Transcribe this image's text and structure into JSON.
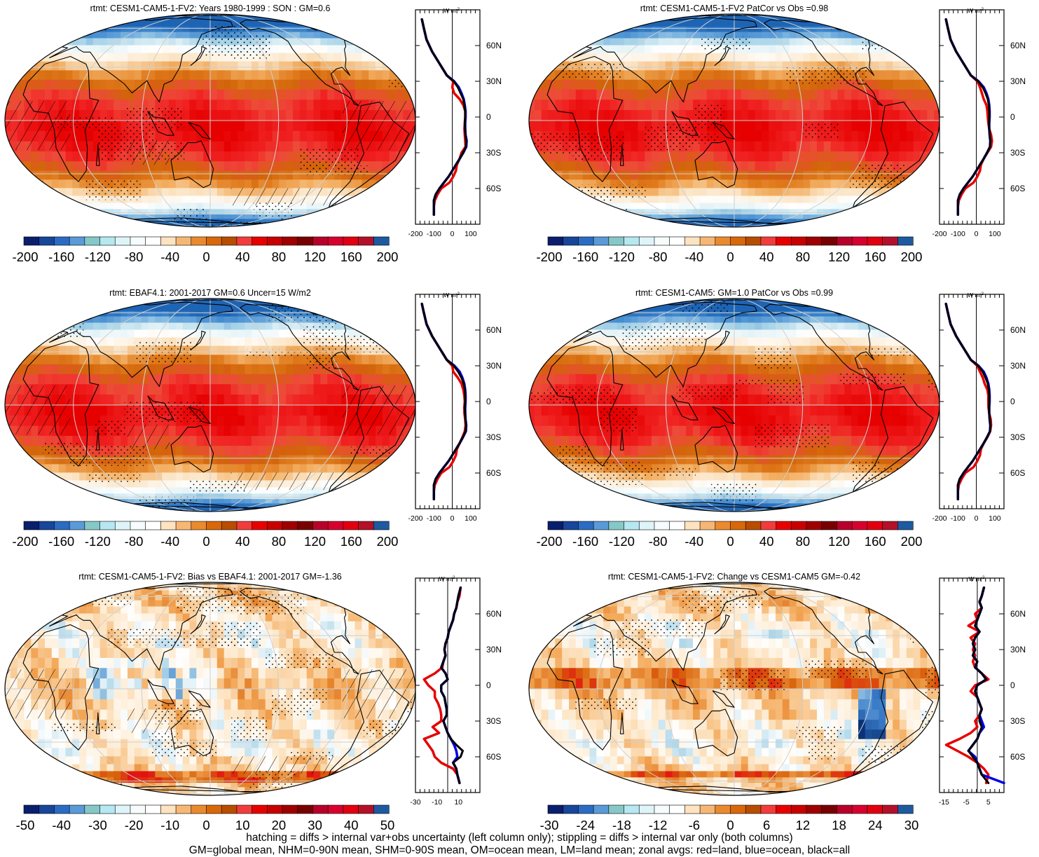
{
  "figure": {
    "footer_lines": [
      "hatching = diffs > internal var+obs uncertainty (left column only); stippling = diffs > internal var only (both columns)",
      "GM=global mean, NHM=0-90N mean, SHM=0-90S mean, OM=ocean mean, LM=land mean; zonal avgs: red=land, blue=ocean, black=all"
    ],
    "zonal_unit_label": "W m",
    "zonal_unit_sup": "-2",
    "lat_labels": [
      "60N",
      "30N",
      "0",
      "30S",
      "60S"
    ],
    "legend_colors": {
      "land": "#e60000",
      "ocean": "#0000e6",
      "all": "#000000"
    }
  },
  "chart_data": [
    {
      "type": "heatmap",
      "title": "rtmt: CESM1-CAM5-1-FV2: Years 1980-1999 : SON : GM=0.6",
      "field": "absolute",
      "hatching": true,
      "colorbar": {
        "labels": [
          "-200",
          "-160",
          "-120",
          "-80",
          "-40",
          "0",
          "40",
          "80",
          "120",
          "160",
          "200"
        ],
        "colors": [
          "#0a1e6e",
          "#17469a",
          "#2a6cc4",
          "#5a9ad8",
          "#86c8c8",
          "#b5e8f0",
          "#dff4f8",
          "#f6fbfc",
          "#ffffff",
          "#fde3c0",
          "#f7b774",
          "#ea8a2e",
          "#d9680a",
          "#b84d00",
          "#f23c3c",
          "#e80000",
          "#c80000",
          "#a00000",
          "#780000",
          "#b8002a",
          "#d8002e",
          "#e20010",
          "#b4102a",
          "#1e5aa0"
        ]
      },
      "zonal_profile": {
        "xlim": [
          -200,
          150
        ],
        "xticks": [
          -200,
          -100,
          0,
          100
        ],
        "lat": [
          82,
          75,
          65,
          55,
          45,
          35,
          30,
          25,
          20,
          15,
          10,
          5,
          0,
          -5,
          -10,
          -15,
          -20,
          -25,
          -30,
          -35,
          -40,
          -45,
          -50,
          -55,
          -60,
          -65,
          -70,
          -75,
          -82
        ],
        "land": [
          -165,
          -155,
          -140,
          -110,
          -70,
          -30,
          5,
          0,
          10,
          40,
          60,
          70,
          70,
          68,
          66,
          68,
          70,
          72,
          50,
          40,
          25,
          20,
          5,
          -15,
          -60,
          -80,
          -95,
          -100,
          -100
        ],
        "ocean": [
          -165,
          -155,
          -140,
          -110,
          -70,
          -30,
          10,
          35,
          50,
          62,
          68,
          72,
          72,
          70,
          70,
          72,
          78,
          76,
          60,
          40,
          20,
          0,
          -20,
          -45,
          -70,
          -90,
          -100,
          -100,
          -100
        ],
        "all": [
          -165,
          -155,
          -140,
          -110,
          -70,
          -30,
          8,
          30,
          45,
          60,
          65,
          70,
          70,
          68,
          70,
          72,
          76,
          74,
          58,
          40,
          20,
          0,
          -20,
          -45,
          -70,
          -90,
          -100,
          -100,
          -100
        ]
      }
    },
    {
      "type": "heatmap",
      "title": "rtmt: CESM1-CAM5-1-FV2 PatCor vs Obs =0.98",
      "field": "absolute",
      "hatching": false,
      "colorbar": {
        "labels": [
          "-200",
          "-160",
          "-120",
          "-80",
          "-40",
          "0",
          "40",
          "80",
          "120",
          "160",
          "200"
        ],
        "colors": [
          "#0a1e6e",
          "#17469a",
          "#2a6cc4",
          "#5a9ad8",
          "#86c8c8",
          "#b5e8f0",
          "#dff4f8",
          "#f6fbfc",
          "#ffffff",
          "#fde3c0",
          "#f7b774",
          "#ea8a2e",
          "#d9680a",
          "#b84d00",
          "#f23c3c",
          "#e80000",
          "#c80000",
          "#a00000",
          "#780000",
          "#b8002a",
          "#d8002e",
          "#e20010",
          "#b4102a",
          "#1e5aa0"
        ]
      },
      "zonal_profile": {
        "xlim": [
          -200,
          150
        ],
        "xticks": [
          -200,
          -100,
          0,
          100
        ],
        "lat": [
          82,
          75,
          65,
          55,
          45,
          35,
          30,
          25,
          20,
          15,
          10,
          5,
          0,
          -5,
          -10,
          -15,
          -20,
          -25,
          -30,
          -35,
          -40,
          -45,
          -50,
          -55,
          -60,
          -65,
          -70,
          -75,
          -82
        ],
        "land": [
          -165,
          -155,
          -140,
          -110,
          -70,
          -30,
          5,
          20,
          30,
          40,
          55,
          60,
          62,
          65,
          70,
          80,
          85,
          80,
          60,
          40,
          25,
          20,
          5,
          -15,
          -60,
          -80,
          -95,
          -100,
          -100
        ],
        "ocean": [
          -165,
          -155,
          -140,
          -110,
          -70,
          -30,
          12,
          40,
          55,
          65,
          70,
          72,
          72,
          70,
          70,
          72,
          76,
          74,
          58,
          40,
          20,
          0,
          -20,
          -45,
          -70,
          -90,
          -100,
          -100,
          -100
        ],
        "all": [
          -165,
          -155,
          -140,
          -110,
          -70,
          -30,
          10,
          35,
          50,
          62,
          68,
          70,
          70,
          69,
          70,
          73,
          76,
          74,
          58,
          40,
          20,
          0,
          -20,
          -45,
          -70,
          -90,
          -100,
          -100,
          -100
        ]
      }
    },
    {
      "type": "heatmap",
      "title": "rtmt: EBAF4.1: 2001-2017 GM=0.6 Uncer=15 W/m2",
      "field": "absolute",
      "hatching": true,
      "colorbar": {
        "labels": [
          "-200",
          "-160",
          "-120",
          "-80",
          "-40",
          "0",
          "40",
          "80",
          "120",
          "160",
          "200"
        ],
        "colors": [
          "#0a1e6e",
          "#17469a",
          "#2a6cc4",
          "#5a9ad8",
          "#86c8c8",
          "#b5e8f0",
          "#dff4f8",
          "#f6fbfc",
          "#ffffff",
          "#fde3c0",
          "#f7b774",
          "#ea8a2e",
          "#d9680a",
          "#b84d00",
          "#f23c3c",
          "#e80000",
          "#c80000",
          "#a00000",
          "#780000",
          "#b8002a",
          "#d8002e",
          "#e20010",
          "#b4102a",
          "#1e5aa0"
        ]
      },
      "zonal_profile": {
        "xlim": [
          -200,
          150
        ],
        "xticks": [
          -200,
          -100,
          0,
          100
        ],
        "lat": [
          82,
          75,
          65,
          55,
          45,
          35,
          30,
          25,
          20,
          15,
          10,
          5,
          0,
          -5,
          -10,
          -15,
          -20,
          -25,
          -30,
          -35,
          -40,
          -45,
          -50,
          -55,
          -60,
          -65,
          -70,
          -75,
          -82
        ],
        "land": [
          -165,
          -155,
          -140,
          -110,
          -70,
          -30,
          0,
          5,
          30,
          50,
          60,
          65,
          68,
          65,
          66,
          70,
          72,
          68,
          55,
          40,
          25,
          20,
          5,
          -15,
          -60,
          -80,
          -95,
          -100,
          -100
        ],
        "ocean": [
          -165,
          -155,
          -140,
          -110,
          -70,
          -30,
          12,
          40,
          55,
          65,
          70,
          72,
          72,
          70,
          70,
          72,
          76,
          74,
          58,
          40,
          20,
          0,
          -20,
          -45,
          -70,
          -90,
          -100,
          -100,
          -100
        ],
        "all": [
          -165,
          -155,
          -140,
          -110,
          -70,
          -30,
          8,
          32,
          50,
          62,
          68,
          70,
          70,
          68,
          70,
          72,
          75,
          72,
          57,
          40,
          20,
          0,
          -20,
          -45,
          -70,
          -90,
          -100,
          -100,
          -100
        ]
      }
    },
    {
      "type": "heatmap",
      "title": "rtmt: CESM1-CAM5: GM=1.0 PatCor vs Obs =0.99",
      "field": "absolute",
      "hatching": false,
      "colorbar": {
        "labels": [
          "-200",
          "-160",
          "-120",
          "-80",
          "-40",
          "0",
          "40",
          "80",
          "120",
          "160",
          "200"
        ],
        "colors": [
          "#0a1e6e",
          "#17469a",
          "#2a6cc4",
          "#5a9ad8",
          "#86c8c8",
          "#b5e8f0",
          "#dff4f8",
          "#f6fbfc",
          "#ffffff",
          "#fde3c0",
          "#f7b774",
          "#ea8a2e",
          "#d9680a",
          "#b84d00",
          "#f23c3c",
          "#e80000",
          "#c80000",
          "#a00000",
          "#780000",
          "#b8002a",
          "#d8002e",
          "#e20010",
          "#b4102a",
          "#1e5aa0"
        ]
      },
      "zonal_profile": {
        "xlim": [
          -200,
          150
        ],
        "xticks": [
          -200,
          -100,
          0,
          100
        ],
        "lat": [
          82,
          75,
          65,
          55,
          45,
          35,
          30,
          25,
          20,
          15,
          10,
          5,
          0,
          -5,
          -10,
          -15,
          -20,
          -25,
          -30,
          -35,
          -40,
          -45,
          -50,
          -55,
          -60,
          -65,
          -70,
          -75,
          -82
        ],
        "land": [
          -165,
          -155,
          -140,
          -110,
          -70,
          -30,
          5,
          20,
          35,
          45,
          60,
          65,
          65,
          66,
          70,
          78,
          80,
          75,
          60,
          40,
          25,
          20,
          5,
          -15,
          -60,
          -80,
          -95,
          -100,
          -100
        ],
        "ocean": [
          -165,
          -155,
          -140,
          -110,
          -70,
          -30,
          12,
          40,
          55,
          65,
          70,
          72,
          72,
          70,
          70,
          72,
          76,
          74,
          58,
          40,
          20,
          0,
          -20,
          -45,
          -70,
          -90,
          -100,
          -100,
          -100
        ],
        "all": [
          -165,
          -155,
          -140,
          -110,
          -70,
          -30,
          10,
          35,
          50,
          62,
          68,
          70,
          70,
          69,
          70,
          73,
          76,
          74,
          58,
          40,
          20,
          0,
          -20,
          -45,
          -70,
          -90,
          -100,
          -100,
          -100
        ]
      }
    },
    {
      "type": "heatmap",
      "title": "rtmt: CESM1-CAM5-1-FV2: Bias vs EBAF4.1: 2001-2017  GM=-1.36",
      "field": "bias",
      "hatching": true,
      "colorbar": {
        "labels": [
          "-50",
          "-40",
          "-30",
          "-20",
          "-10",
          "0",
          "10",
          "20",
          "30",
          "40",
          "50"
        ],
        "colors": [
          "#0a1e6e",
          "#17469a",
          "#2a6cc4",
          "#5a9ad8",
          "#86c8c8",
          "#b5e8f0",
          "#dff4f8",
          "#f6fbfc",
          "#ffffff",
          "#fde3c0",
          "#f7b774",
          "#ea8a2e",
          "#d9680a",
          "#b84d00",
          "#f23c3c",
          "#e80000",
          "#c80000",
          "#a00000",
          "#780000",
          "#b8002a",
          "#d8002e",
          "#e20010",
          "#b4102a",
          "#1e5aa0"
        ]
      },
      "zonal_profile": {
        "xlim": [
          -30,
          30
        ],
        "xticks": [
          -30,
          -10,
          10
        ],
        "lat": [
          82,
          75,
          70,
          65,
          60,
          55,
          50,
          45,
          40,
          35,
          30,
          25,
          20,
          15,
          10,
          5,
          0,
          -5,
          -10,
          -15,
          -20,
          -25,
          -30,
          -35,
          -40,
          -45,
          -50,
          -55,
          -60,
          -65,
          -70,
          -75,
          -82
        ],
        "land": [
          12,
          11,
          9,
          8,
          6,
          5,
          3,
          1,
          0,
          -2,
          -3,
          -2,
          -4,
          -5,
          -12,
          -22,
          -18,
          -12,
          -12,
          -9,
          -7,
          -6,
          -6,
          -14,
          -8,
          -22,
          -18,
          -14,
          -12,
          -6,
          5,
          9,
          11
        ],
        "ocean": [
          12,
          10,
          9,
          8,
          6,
          5,
          3,
          1,
          0,
          -2,
          -3,
          -2,
          -4,
          -6,
          -2,
          0,
          -6,
          -6,
          -3,
          -2,
          -1,
          -1,
          -4,
          -2,
          0,
          3,
          6,
          8,
          9,
          5,
          8,
          9,
          11
        ],
        "all": [
          12,
          10,
          9,
          8,
          6,
          5,
          3,
          1,
          0,
          -2,
          -3,
          -2,
          -4,
          -6,
          -2,
          0,
          -6,
          -6,
          -3,
          -2,
          -1,
          -1,
          -4,
          -2,
          0,
          3,
          8,
          14,
          12,
          5,
          8,
          9,
          11
        ]
      }
    },
    {
      "type": "heatmap",
      "title": "rtmt: CESM1-CAM5-1-FV2: Change vs CESM1-CAM5 GM=-0.42",
      "field": "change",
      "hatching": false,
      "colorbar": {
        "labels": [
          "-30",
          "-24",
          "-18",
          "-12",
          "-6",
          "0",
          "6",
          "12",
          "18",
          "24",
          "30"
        ],
        "colors": [
          "#0a1e6e",
          "#17469a",
          "#2a6cc4",
          "#5a9ad8",
          "#86c8c8",
          "#b5e8f0",
          "#dff4f8",
          "#f6fbfc",
          "#ffffff",
          "#fde3c0",
          "#f7b774",
          "#ea8a2e",
          "#d9680a",
          "#b84d00",
          "#f23c3c",
          "#e80000",
          "#c80000",
          "#a00000",
          "#780000",
          "#b8002a",
          "#d8002e",
          "#e20010",
          "#b4102a",
          "#1e5aa0"
        ]
      },
      "zonal_profile": {
        "xlim": [
          -17,
          12
        ],
        "xticks": [
          -15,
          -5,
          5
        ],
        "lat": [
          82,
          75,
          70,
          65,
          60,
          55,
          50,
          45,
          40,
          35,
          30,
          25,
          20,
          15,
          10,
          5,
          0,
          -5,
          -10,
          -15,
          -20,
          -25,
          -30,
          -35,
          -40,
          -45,
          -50,
          -55,
          -60,
          -65,
          -70,
          -75,
          -82
        ],
        "land": [
          3,
          2,
          1,
          2,
          -1,
          0,
          -4,
          1,
          -3,
          -1,
          -2,
          -1,
          -2,
          -1,
          2,
          5,
          -1,
          -3,
          0,
          1,
          2,
          1,
          -1,
          0,
          -3,
          -8,
          -14,
          -9,
          -4,
          0,
          3,
          5,
          4
        ],
        "ocean": [
          3,
          2,
          1,
          2,
          1,
          0,
          -1,
          1,
          -1,
          -2,
          -1,
          -2,
          0,
          -1,
          2,
          4,
          0,
          -1,
          0,
          1,
          2,
          1,
          2,
          3,
          1,
          0,
          -2,
          -4,
          -1,
          0,
          1,
          2,
          12
        ],
        "all": [
          3,
          2,
          1,
          2,
          1,
          0,
          -1,
          1,
          -1,
          -2,
          -1,
          -2,
          0,
          -1,
          2,
          4,
          0,
          -1,
          0,
          1,
          2,
          1,
          1,
          2,
          1,
          0,
          -2,
          -4,
          -2,
          0,
          1,
          2,
          5
        ]
      }
    }
  ]
}
